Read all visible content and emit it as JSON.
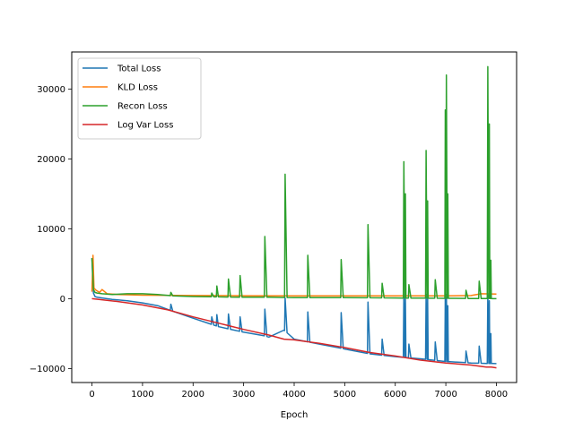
{
  "chart_data": {
    "type": "line",
    "title": "",
    "xlabel": "Epoch",
    "ylabel": "",
    "xlim": [
      -400,
      8400
    ],
    "ylim": [
      -12000,
      35300
    ],
    "x_ticks": [
      0,
      1000,
      2000,
      3000,
      4000,
      5000,
      6000,
      7000,
      8000
    ],
    "y_ticks": [
      -10000,
      0,
      10000,
      20000,
      30000
    ],
    "grid": false,
    "legend_position": "top-left",
    "spikes": [
      {
        "x": 1560,
        "recon": 900,
        "total": -800
      },
      {
        "x": 2370,
        "recon": 800,
        "total": -2600
      },
      {
        "x": 2470,
        "recon": 1800,
        "total": -2300
      },
      {
        "x": 2700,
        "recon": 2800,
        "total": -2200
      },
      {
        "x": 2930,
        "recon": 3300,
        "total": -2600
      },
      {
        "x": 3420,
        "recon": 8900,
        "total": -1500
      },
      {
        "x": 3820,
        "recon": 17800,
        "total": 100
      },
      {
        "x": 4270,
        "recon": 6200,
        "total": -1900
      },
      {
        "x": 4930,
        "recon": 5600,
        "total": -2000
      },
      {
        "x": 5460,
        "recon": 10600,
        "total": -500
      },
      {
        "x": 5740,
        "recon": 2200,
        "total": -5800
      },
      {
        "x": 6170,
        "recon": 19600,
        "total": 500
      },
      {
        "x": 6200,
        "recon": 15000,
        "total": 0
      },
      {
        "x": 6270,
        "recon": 2000,
        "total": -6500
      },
      {
        "x": 6610,
        "recon": 21200,
        "total": 600
      },
      {
        "x": 6640,
        "recon": 14000,
        "total": 0
      },
      {
        "x": 6790,
        "recon": 2700,
        "total": -6200
      },
      {
        "x": 6990,
        "recon": 27000,
        "total": 500
      },
      {
        "x": 7010,
        "recon": 32000,
        "total": 600
      },
      {
        "x": 7040,
        "recon": 15000,
        "total": -1000
      },
      {
        "x": 7400,
        "recon": 1200,
        "total": -7500
      },
      {
        "x": 7660,
        "recon": 2500,
        "total": -6800
      },
      {
        "x": 7830,
        "recon": 33200,
        "total": 700
      },
      {
        "x": 7860,
        "recon": 25000,
        "total": -300
      },
      {
        "x": 7890,
        "recon": 5500,
        "total": -5000
      }
    ],
    "series": [
      {
        "name": "Total Loss",
        "color": "#1f77b4",
        "x": [
          0,
          30,
          60,
          100,
          200,
          400,
          700,
          1000,
          1300,
          1600,
          2000,
          2500,
          3000,
          3400,
          3500,
          3800,
          4000,
          4500,
          5000,
          5500,
          6000,
          6500,
          7000,
          7500,
          8000
        ],
        "y": [
          5800,
          800,
          300,
          200,
          100,
          -100,
          -300,
          -600,
          -1000,
          -1800,
          -2800,
          -4000,
          -4800,
          -5300,
          -5500,
          -4500,
          -5800,
          -6500,
          -7200,
          -7900,
          -8300,
          -8600,
          -9000,
          -9200,
          -9300
        ]
      },
      {
        "name": "KLD Loss",
        "color": "#ff7f0e",
        "x": [
          0,
          20,
          40,
          80,
          150,
          200,
          300,
          500,
          1000,
          2000,
          3000,
          4000,
          5000,
          6000,
          7000,
          7500,
          7700,
          8000
        ],
        "y": [
          1000,
          6200,
          1500,
          1200,
          900,
          1300,
          700,
          600,
          500,
          450,
          420,
          400,
          400,
          400,
          400,
          450,
          700,
          650
        ]
      },
      {
        "name": "Recon Loss",
        "color": "#2ca02c",
        "x": [
          0,
          30,
          60,
          100,
          200,
          400,
          700,
          1000,
          1300,
          1600,
          2000,
          2500,
          3000,
          3500,
          4000,
          5000,
          6000,
          7000,
          8000
        ],
        "y": [
          5800,
          1300,
          900,
          800,
          700,
          600,
          700,
          700,
          600,
          400,
          300,
          250,
          200,
          200,
          150,
          150,
          100,
          50,
          0
        ]
      },
      {
        "name": "Log Var Loss",
        "color": "#d62728",
        "x": [
          0,
          500,
          1000,
          1500,
          2000,
          2500,
          3000,
          3500,
          3800,
          4000,
          4500,
          5000,
          5500,
          6000,
          6500,
          7000,
          7500,
          7800,
          7900,
          8000
        ],
        "y": [
          0,
          -400,
          -900,
          -1600,
          -2600,
          -3500,
          -4400,
          -5200,
          -5800,
          -5900,
          -6400,
          -7000,
          -7700,
          -8200,
          -8800,
          -9200,
          -9500,
          -9800,
          -9800,
          -9900
        ]
      }
    ]
  }
}
